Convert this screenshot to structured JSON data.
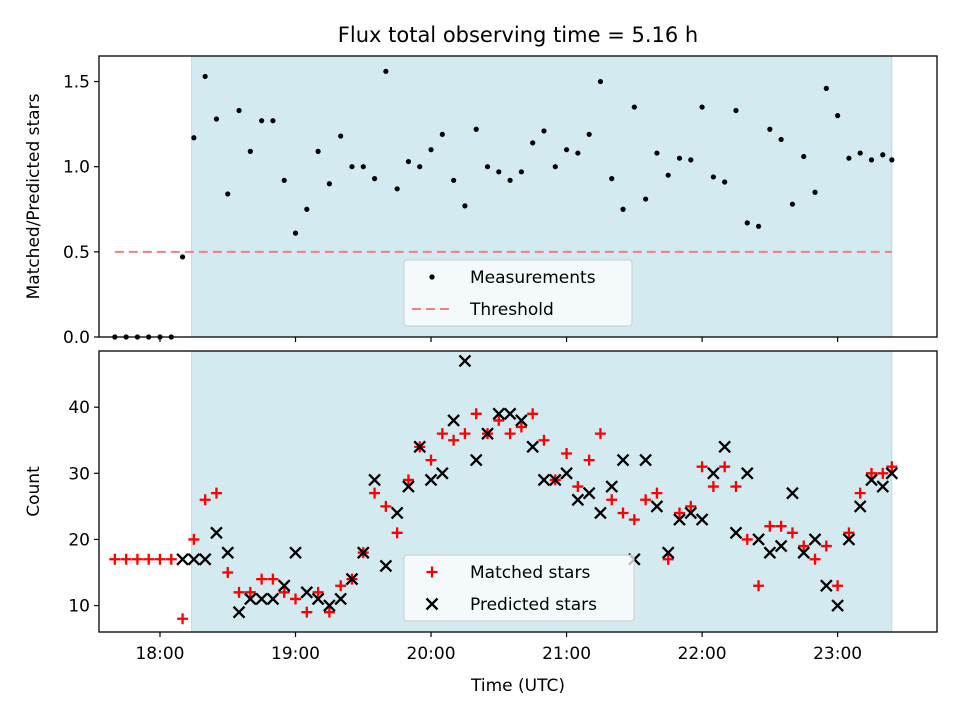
{
  "title": "Flux total observing time = 5.16 h",
  "colors": {
    "shade": "#d3eaf0",
    "shade_edge": "#b7dde6",
    "threshold": "#f08080",
    "matched": "#ff0000",
    "predicted": "#000000",
    "measurement": "#000000"
  },
  "chart_data": [
    {
      "type": "scatter",
      "ylabel": "Matched/Predicted stars",
      "ylim": [
        0,
        1.65
      ],
      "yticks": [
        0.0,
        0.5,
        1.0,
        1.5
      ],
      "ytick_labels": [
        "0.0",
        "0.5",
        "1.0",
        "1.5"
      ],
      "xlim": [
        "17:33",
        "23:44"
      ],
      "shaded_span": [
        "18:14",
        "23:24"
      ],
      "threshold": {
        "y": 0.5,
        "x_start": "17:40",
        "x_end": "23:24"
      },
      "legend": {
        "placement": "lower-center",
        "entries": [
          "Measurements",
          "Threshold"
        ]
      },
      "series": [
        {
          "name": "Measurements",
          "x": [
            "17:40",
            "17:45",
            "17:50",
            "17:55",
            "18:00",
            "18:05",
            "18:10",
            "18:15",
            "18:20",
            "18:25",
            "18:30",
            "18:35",
            "18:40",
            "18:45",
            "18:50",
            "18:55",
            "19:00",
            "19:05",
            "19:10",
            "19:15",
            "19:20",
            "19:25",
            "19:30",
            "19:35",
            "19:40",
            "19:45",
            "19:50",
            "19:55",
            "20:00",
            "20:05",
            "20:10",
            "20:15",
            "20:20",
            "20:25",
            "20:30",
            "20:35",
            "20:40",
            "20:45",
            "20:50",
            "20:55",
            "21:00",
            "21:05",
            "21:10",
            "21:15",
            "21:20",
            "21:25",
            "21:30",
            "21:35",
            "21:40",
            "21:45",
            "21:50",
            "21:55",
            "22:00",
            "22:05",
            "22:10",
            "22:15",
            "22:20",
            "22:25",
            "22:30",
            "22:35",
            "22:40",
            "22:45",
            "22:50",
            "22:55",
            "23:00",
            "23:05",
            "23:10",
            "23:15",
            "23:20",
            "23:24"
          ],
          "y": [
            0.0,
            0.0,
            0.0,
            0.0,
            0.0,
            0.0,
            0.47,
            1.17,
            1.53,
            1.28,
            0.84,
            1.33,
            1.09,
            1.27,
            1.27,
            0.92,
            0.61,
            0.75,
            1.09,
            0.9,
            1.18,
            1.0,
            1.0,
            0.93,
            1.56,
            0.87,
            1.03,
            1.0,
            1.1,
            1.19,
            0.92,
            0.77,
            1.22,
            1.0,
            0.97,
            0.92,
            0.97,
            1.14,
            1.21,
            1.0,
            1.1,
            1.08,
            1.19,
            1.5,
            0.93,
            0.75,
            1.35,
            0.81,
            1.08,
            0.95,
            1.05,
            1.04,
            1.35,
            0.94,
            0.91,
            1.33,
            0.67,
            0.65,
            1.22,
            1.16,
            0.78,
            1.06,
            0.85,
            1.46,
            1.3,
            1.05,
            1.08,
            1.04,
            1.07,
            1.04
          ]
        }
      ]
    },
    {
      "type": "scatter",
      "xlabel": "Time (UTC)",
      "ylabel": "Count",
      "ylim": [
        6,
        48.5
      ],
      "yticks": [
        10,
        20,
        30,
        40
      ],
      "ytick_labels": [
        "10",
        "20",
        "30",
        "40"
      ],
      "xlim": [
        "17:33",
        "23:44"
      ],
      "xticks": [
        "18:00",
        "19:00",
        "20:00",
        "21:00",
        "22:00",
        "23:00"
      ],
      "xtick_labels": [
        "18:00",
        "19:00",
        "20:00",
        "21:00",
        "22:00",
        "23:00"
      ],
      "shaded_span": [
        "18:14",
        "23:24"
      ],
      "legend": {
        "placement": "lower-center",
        "entries": [
          "Matched stars",
          "Predicted stars"
        ]
      },
      "series": [
        {
          "name": "Matched stars",
          "marker": "plus",
          "x": [
            "17:40",
            "17:45",
            "17:50",
            "17:55",
            "18:00",
            "18:05",
            "18:10",
            "18:15",
            "18:20",
            "18:25",
            "18:30",
            "18:35",
            "18:40",
            "18:45",
            "18:50",
            "18:55",
            "19:00",
            "19:05",
            "19:10",
            "19:15",
            "19:20",
            "19:25",
            "19:30",
            "19:35",
            "19:40",
            "19:45",
            "19:50",
            "19:55",
            "20:00",
            "20:05",
            "20:10",
            "20:15",
            "20:20",
            "20:25",
            "20:30",
            "20:35",
            "20:40",
            "20:45",
            "20:50",
            "20:55",
            "21:00",
            "21:05",
            "21:10",
            "21:15",
            "21:20",
            "21:25",
            "21:30",
            "21:35",
            "21:40",
            "21:45",
            "21:50",
            "21:55",
            "22:00",
            "22:05",
            "22:10",
            "22:15",
            "22:20",
            "22:25",
            "22:30",
            "22:35",
            "22:40",
            "22:45",
            "22:50",
            "22:55",
            "23:00",
            "23:05",
            "23:10",
            "23:15",
            "23:20",
            "23:24"
          ],
          "y": [
            17,
            17,
            17,
            17,
            17,
            17,
            8,
            20,
            26,
            27,
            15,
            12,
            12,
            14,
            14,
            12,
            11,
            9,
            12,
            9,
            13,
            14,
            18,
            27,
            25,
            21,
            29,
            34,
            32,
            36,
            35,
            36,
            39,
            36,
            38,
            36,
            37,
            39,
            35,
            29,
            33,
            28,
            32,
            36,
            26,
            24,
            23,
            26,
            27,
            17,
            24,
            25,
            31,
            28,
            31,
            28,
            20,
            13,
            22,
            22,
            21,
            19,
            17,
            19,
            13,
            21,
            27,
            30,
            30,
            31
          ]
        },
        {
          "name": "Predicted stars",
          "marker": "cross",
          "x": [
            "18:10",
            "18:15",
            "18:20",
            "18:25",
            "18:30",
            "18:35",
            "18:40",
            "18:45",
            "18:50",
            "18:55",
            "19:00",
            "19:05",
            "19:10",
            "19:15",
            "19:20",
            "19:25",
            "19:30",
            "19:35",
            "19:40",
            "19:45",
            "19:50",
            "19:55",
            "20:00",
            "20:05",
            "20:10",
            "20:15",
            "20:20",
            "20:25",
            "20:30",
            "20:35",
            "20:40",
            "20:45",
            "20:50",
            "20:55",
            "21:00",
            "21:05",
            "21:10",
            "21:15",
            "21:20",
            "21:25",
            "21:30",
            "21:35",
            "21:40",
            "21:45",
            "21:50",
            "21:55",
            "22:00",
            "22:05",
            "22:10",
            "22:15",
            "22:20",
            "22:25",
            "22:30",
            "22:35",
            "22:40",
            "22:45",
            "22:50",
            "22:55",
            "23:00",
            "23:05",
            "23:10",
            "23:15",
            "23:20",
            "23:24"
          ],
          "y": [
            17,
            17,
            17,
            21,
            18,
            9,
            11,
            11,
            11,
            13,
            18,
            12,
            11,
            10,
            11,
            14,
            18,
            29,
            16,
            24,
            28,
            34,
            29,
            30,
            38,
            47,
            32,
            36,
            39,
            39,
            38,
            34,
            29,
            29,
            30,
            26,
            27,
            24,
            28,
            32,
            17,
            32,
            25,
            18,
            23,
            24,
            23,
            30,
            34,
            21,
            30,
            20,
            18,
            19,
            27,
            18,
            20,
            13,
            10,
            20,
            25,
            29,
            28,
            30
          ]
        }
      ]
    }
  ]
}
